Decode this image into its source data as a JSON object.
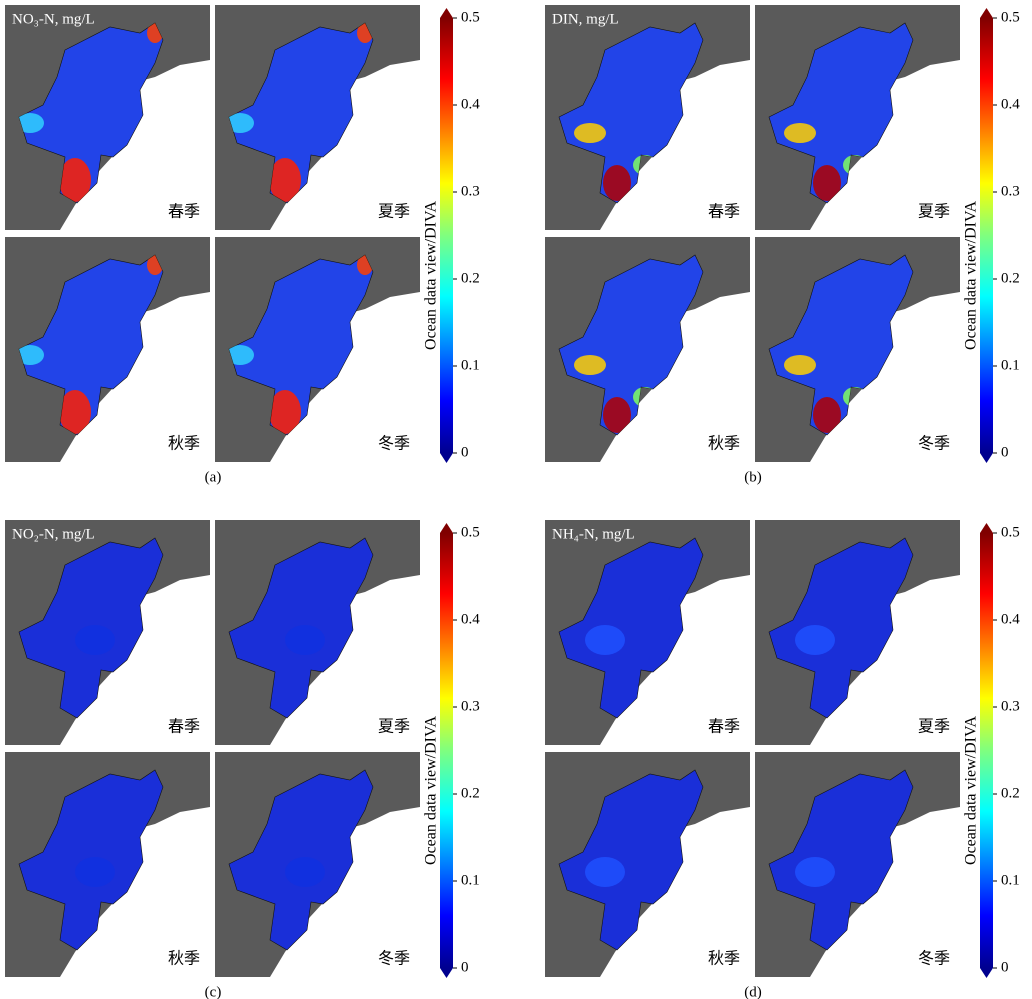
{
  "panels": [
    {
      "title": "NO₃-N, mg/L",
      "seasons": [
        "春季",
        "夏季",
        "秋季",
        "冬季"
      ],
      "caption": "(a)",
      "colorbar": {
        "label": "Ocean data view/DIVA",
        "lim": [
          0,
          0.5
        ],
        "ticks": [
          0,
          0.1,
          0.2,
          0.3,
          0.4,
          0.5
        ]
      }
    },
    {
      "title": "DIN, mg/L",
      "seasons": [
        "春季",
        "夏季",
        "秋季",
        "冬季"
      ],
      "caption": "(b)",
      "colorbar": {
        "label": "Ocean data view/DIVA",
        "lim": [
          0,
          0.5
        ],
        "ticks": [
          0,
          0.1,
          0.2,
          0.3,
          0.4,
          0.5
        ]
      }
    },
    {
      "title": "NO₂-N, mg/L",
      "seasons": [
        "春季",
        "夏季",
        "秋季",
        "冬季"
      ],
      "caption": "(c)",
      "colorbar": {
        "label": "Ocean data view/DIVA",
        "lim": [
          0,
          0.5
        ],
        "ticks": [
          0,
          0.1,
          0.2,
          0.3,
          0.4,
          0.5
        ]
      }
    },
    {
      "title": "NH₄-N, mg/L",
      "seasons": [
        "春季",
        "夏季",
        "秋季",
        "冬季"
      ],
      "caption": "(d)",
      "colorbar": {
        "label": "Ocean data view/DIVA",
        "lim": [
          0,
          0.5
        ],
        "ticks": [
          0,
          0.1,
          0.2,
          0.3,
          0.4,
          0.5
        ]
      }
    }
  ]
}
